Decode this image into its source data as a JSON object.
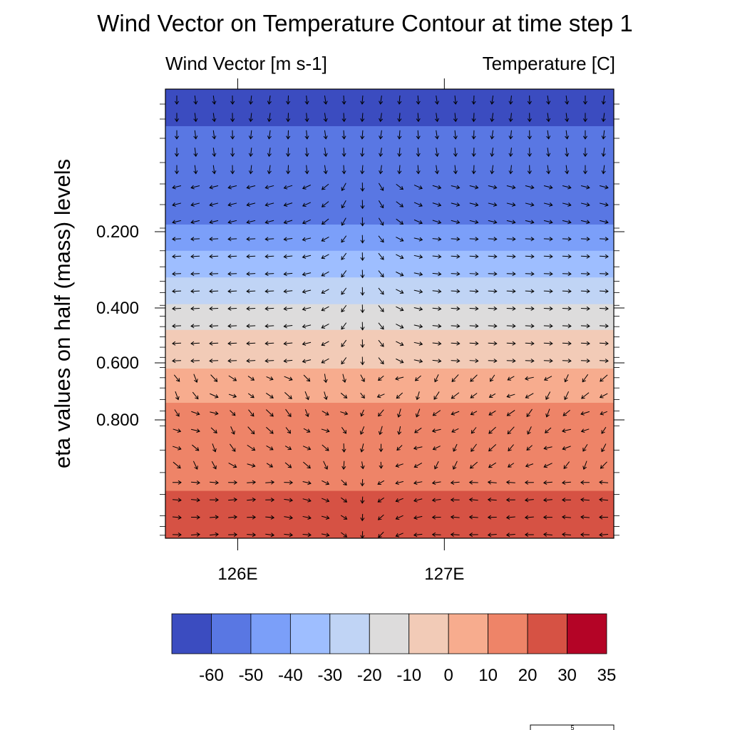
{
  "figure": {
    "title": "Wind Vector on Temperature Contour at time step 1",
    "left_subtitle": "Wind Vector [m s-1]",
    "right_subtitle": "Temperature [C]",
    "reference_vector_label": "5"
  },
  "chart_data": {
    "type": "heatmap",
    "title": "Wind Vector on Temperature Contour at time step 1",
    "xlabel": "",
    "ylabel": "eta values on half (mass) levels",
    "x_ticks": [
      {
        "value": 126,
        "label": "126E"
      },
      {
        "value": 127,
        "label": "127E"
      }
    ],
    "xlim": [
      125.65,
      127.82
    ],
    "y_ticks": [
      {
        "value": 0.2,
        "label": "0.200"
      },
      {
        "value": 0.4,
        "label": "0.400"
      },
      {
        "value": 0.6,
        "label": "0.600"
      },
      {
        "value": 0.8,
        "label": "0.800"
      }
    ],
    "y_minor_ticks": [
      0.021,
      0.042,
      0.069,
      0.103,
      0.133,
      0.162,
      0.195,
      0.25,
      0.292,
      0.33,
      0.36,
      0.393,
      0.43,
      0.468,
      0.505,
      0.543,
      0.58,
      0.616,
      0.652,
      0.688,
      0.729,
      0.769,
      0.81,
      0.851,
      0.889,
      0.926,
      0.962,
      0.98,
      0.995
    ],
    "y_orientation": "0 at top, 1 at bottom (non-linear eta axis)",
    "contour_levels": [
      -60,
      -50,
      -40,
      -30,
      -20,
      -10,
      0,
      10,
      20,
      30,
      35
    ],
    "colorbar_colors": [
      "#3b4cc0",
      "#5977e3",
      "#7b9ff9",
      "#9ebeff",
      "#c0d4f5",
      "#dddcdc",
      "#f2cbb7",
      "#f7ac8e",
      "#ee8468",
      "#d65244",
      "#b40426"
    ],
    "temperature_bands": [
      {
        "eta_bottom": 0.052,
        "fill": "#3b4cc0"
      },
      {
        "eta_bottom": 0.19,
        "fill": "#5977e3"
      },
      {
        "eta_bottom": 0.25,
        "fill": "#7b9ff9"
      },
      {
        "eta_bottom": 0.32,
        "fill": "#9ebeff"
      },
      {
        "eta_bottom": 0.39,
        "fill": "#c0d4f5"
      },
      {
        "eta_bottom": 0.48,
        "fill": "#dddcdc"
      },
      {
        "eta_bottom": 0.62,
        "fill": "#f2cbb7"
      },
      {
        "eta_bottom": 0.74,
        "fill": "#f7ac8e"
      },
      {
        "eta_bottom": 0.92,
        "fill": "#ee8468"
      },
      {
        "eta_bottom": 1.0,
        "fill": "#d65244"
      }
    ],
    "wind_vectors": {
      "columns": 24,
      "rows": 26,
      "reference_magnitude": 5,
      "pattern": "weak southward flow aloft; divergence from ~126.6E in mid levels (westward flow west, eastward flow east); convergence toward ~126.6E near surface"
    },
    "grid": false,
    "legend_placement": "bottom"
  }
}
